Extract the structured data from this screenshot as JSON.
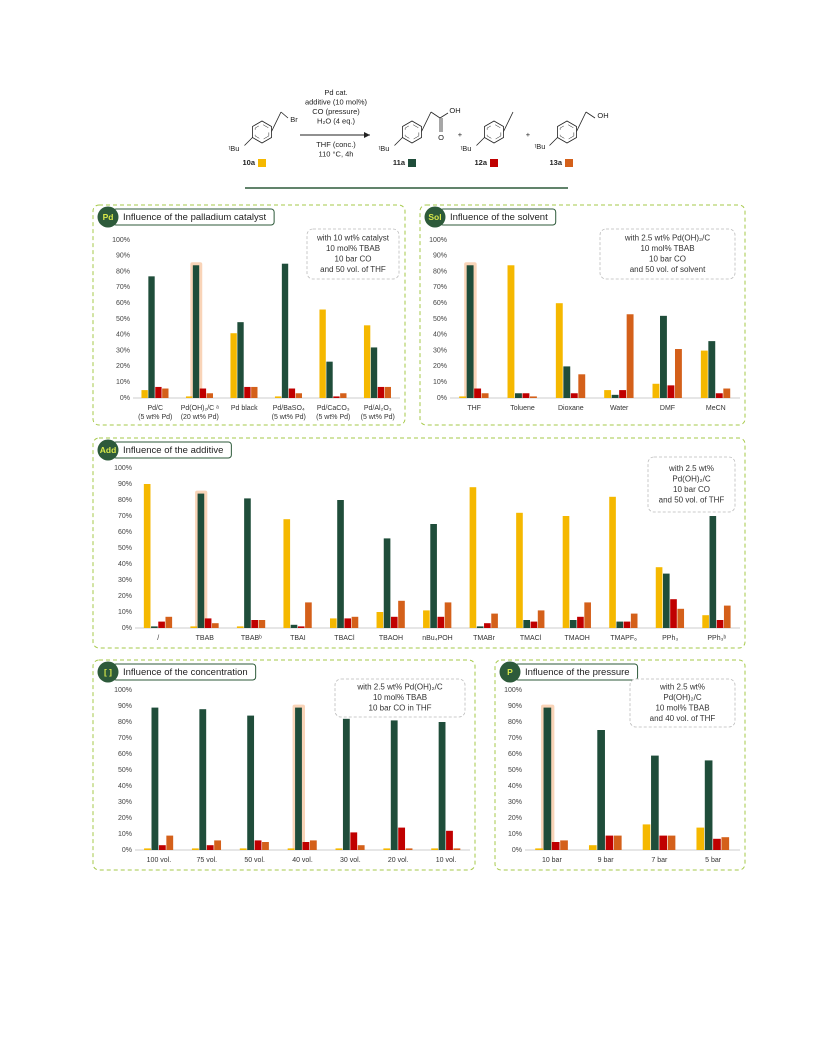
{
  "scheme": {
    "conditions_above": [
      "Pd cat.",
      "additive (10 mol%)",
      "CO (pressure)",
      "H₂O (4 eq.)"
    ],
    "conditions_below": [
      "THF (conc.)",
      "110 °C, 4h"
    ],
    "compounds": [
      {
        "label": "10a",
        "color": "#f5b800",
        "atoms": [
          "ᵗBu",
          "Br"
        ]
      },
      {
        "label": "11a",
        "color": "#1f4d3a",
        "atoms": [
          "ᵗBu",
          "OH",
          "O"
        ]
      },
      {
        "label": "12a",
        "color": "#c00000",
        "atoms": [
          "ᵗBu"
        ]
      },
      {
        "label": "13a",
        "color": "#d4601a",
        "atoms": [
          "ᵗBu",
          "OH"
        ]
      }
    ],
    "plus": "+"
  },
  "chart_data": [
    {
      "type": "bar",
      "badge": "Pd",
      "title": "Influence of the palladium catalyst",
      "note": [
        "with 10 wt% catalyst",
        "10 mol% TBAB",
        "10 bar CO",
        "and 50 vol. of THF"
      ],
      "categories": [
        [
          "Pd/C",
          "(5 wt% Pd)"
        ],
        [
          "Pd(OH)₂/C ᵃ",
          "(20 wt% Pd)"
        ],
        [
          "Pd black"
        ],
        [
          "Pd/BaSO₄",
          "(5 wt% Pd)"
        ],
        [
          "Pd/CaCO₃",
          "(5 wt% Pd)"
        ],
        [
          "Pd/Al₂O₃",
          "(5 wt% Pd)"
        ]
      ],
      "series": [
        {
          "color": "#f5b800",
          "values": [
            5,
            1,
            41,
            1,
            56,
            46
          ]
        },
        {
          "color": "#1f4d3a",
          "values": [
            77,
            84,
            48,
            85,
            23,
            32
          ]
        },
        {
          "color": "#c00000",
          "values": [
            7,
            6,
            7,
            6,
            1,
            7
          ]
        },
        {
          "color": "#d4601a",
          "values": [
            6,
            3,
            7,
            3,
            3,
            7
          ]
        }
      ],
      "highlight": 1,
      "grid": false,
      "ylim": [
        0,
        100
      ],
      "yticks": [
        {
          "value": 0,
          "label": "0%"
        },
        {
          "value": 10,
          "label": "10%"
        },
        {
          "value": 20,
          "label": "20%"
        },
        {
          "value": 30,
          "label": "30%"
        },
        {
          "value": 40,
          "label": "40%"
        },
        {
          "value": 50,
          "label": "50%"
        },
        {
          "value": 60,
          "label": "60%"
        },
        {
          "value": 70,
          "label": "70%"
        },
        {
          "value": 80,
          "label": "80%"
        },
        {
          "value": 90,
          "label": "90%"
        },
        {
          "value": 100,
          "label": "100%"
        }
      ]
    },
    {
      "type": "bar",
      "badge": "Sol",
      "title": "Influence of the solvent",
      "note": [
        "with 2.5 wt% Pd(OH)₂/C",
        "10 mol% TBAB",
        "10 bar CO",
        "and 50 vol. of solvent"
      ],
      "categories": [
        [
          "THF"
        ],
        [
          "Toluene"
        ],
        [
          "Dioxane"
        ],
        [
          "Water"
        ],
        [
          "DMF"
        ],
        [
          "MeCN"
        ]
      ],
      "series": [
        {
          "color": "#f5b800",
          "values": [
            1,
            84,
            60,
            5,
            9,
            30
          ]
        },
        {
          "color": "#1f4d3a",
          "values": [
            84,
            3,
            20,
            2,
            52,
            36
          ]
        },
        {
          "color": "#c00000",
          "values": [
            6,
            3,
            3,
            5,
            8,
            3
          ]
        },
        {
          "color": "#d4601a",
          "values": [
            3,
            1,
            15,
            53,
            31,
            6
          ]
        }
      ],
      "highlight": 0,
      "grid": false,
      "ylim": [
        0,
        100
      ],
      "yticks": [
        {
          "value": 0,
          "label": "0%"
        },
        {
          "value": 10,
          "label": "10%"
        },
        {
          "value": 20,
          "label": "20%"
        },
        {
          "value": 30,
          "label": "30%"
        },
        {
          "value": 40,
          "label": "40%"
        },
        {
          "value": 50,
          "label": "50%"
        },
        {
          "value": 60,
          "label": "60%"
        },
        {
          "value": 70,
          "label": "70%"
        },
        {
          "value": 80,
          "label": "80%"
        },
        {
          "value": 90,
          "label": "90%"
        },
        {
          "value": 100,
          "label": "100%"
        }
      ]
    },
    {
      "type": "bar",
      "badge": "Add",
      "title": "Influence of the additive",
      "note": [
        "with 2.5 wt%",
        "Pd(OH)₂/C",
        "10 bar CO",
        "and 50 vol. of THF"
      ],
      "categories": [
        [
          "/"
        ],
        [
          "TBAB"
        ],
        [
          "TBABᵇ"
        ],
        [
          "TBAI"
        ],
        [
          "TBACl"
        ],
        [
          "TBAOH"
        ],
        [
          "nBu₄POH"
        ],
        [
          "TMABr"
        ],
        [
          "TMACl"
        ],
        [
          "TMAOH"
        ],
        [
          "TMAPF₆"
        ],
        [
          "PPh₃"
        ],
        [
          "PPh₃ᵇ"
        ]
      ],
      "series": [
        {
          "color": "#f5b800",
          "values": [
            90,
            1,
            1,
            68,
            6,
            10,
            11,
            88,
            72,
            70,
            82,
            38,
            8
          ]
        },
        {
          "color": "#1f4d3a",
          "values": [
            1,
            84,
            81,
            2,
            80,
            56,
            65,
            1,
            5,
            5,
            4,
            34,
            70
          ]
        },
        {
          "color": "#c00000",
          "values": [
            4,
            6,
            5,
            1,
            6,
            7,
            7,
            3,
            4,
            7,
            4,
            18,
            5
          ]
        },
        {
          "color": "#d4601a",
          "values": [
            7,
            3,
            5,
            16,
            7,
            17,
            16,
            9,
            11,
            16,
            9,
            12,
            14
          ]
        }
      ],
      "highlight": 1,
      "grid": false,
      "ylim": [
        0,
        100
      ],
      "yticks": [
        {
          "value": 0,
          "label": "0%"
        },
        {
          "value": 10,
          "label": "10%"
        },
        {
          "value": 20,
          "label": "20%"
        },
        {
          "value": 30,
          "label": "30%"
        },
        {
          "value": 40,
          "label": "40%"
        },
        {
          "value": 50,
          "label": "50%"
        },
        {
          "value": 60,
          "label": "60%"
        },
        {
          "value": 70,
          "label": "70%"
        },
        {
          "value": 80,
          "label": "80%"
        },
        {
          "value": 90,
          "label": "90%"
        },
        {
          "value": 100,
          "label": "100%"
        }
      ]
    },
    {
      "type": "bar",
      "badge": "[ ]",
      "title": "Influence of the concentration",
      "note": [
        "with 2.5 wt% Pd(OH)₂/C",
        "10 mol% TBAB",
        "10 bar CO in THF"
      ],
      "categories": [
        [
          "100 vol."
        ],
        [
          "75 vol."
        ],
        [
          "50 vol."
        ],
        [
          "40 vol."
        ],
        [
          "30 vol."
        ],
        [
          "20 vol."
        ],
        [
          "10 vol."
        ]
      ],
      "series": [
        {
          "color": "#f5b800",
          "values": [
            1,
            1,
            1,
            1,
            1,
            1,
            1
          ]
        },
        {
          "color": "#1f4d3a",
          "values": [
            89,
            88,
            84,
            89,
            82,
            81,
            80
          ]
        },
        {
          "color": "#c00000",
          "values": [
            3,
            3,
            6,
            5,
            11,
            14,
            12
          ]
        },
        {
          "color": "#d4601a",
          "values": [
            9,
            6,
            5,
            6,
            3,
            1,
            1
          ]
        }
      ],
      "highlight": 3,
      "grid": false,
      "ylim": [
        0,
        100
      ],
      "yticks": [
        {
          "value": 0,
          "label": "0%"
        },
        {
          "value": 10,
          "label": "10%"
        },
        {
          "value": 20,
          "label": "20%"
        },
        {
          "value": 30,
          "label": "30%"
        },
        {
          "value": 40,
          "label": "40%"
        },
        {
          "value": 50,
          "label": "50%"
        },
        {
          "value": 60,
          "label": "60%"
        },
        {
          "value": 70,
          "label": "70%"
        },
        {
          "value": 80,
          "label": "80%"
        },
        {
          "value": 90,
          "label": "90%"
        },
        {
          "value": 100,
          "label": "100%"
        }
      ]
    },
    {
      "type": "bar",
      "badge": "P",
      "title": "Influence of the pressure",
      "note": [
        "with 2.5 wt%",
        "Pd(OH)₂/C",
        "10 mol% TBAB",
        "and 40 vol. of THF"
      ],
      "categories": [
        [
          "10 bar"
        ],
        [
          "9 bar"
        ],
        [
          "7 bar"
        ],
        [
          "5 bar"
        ]
      ],
      "series": [
        {
          "color": "#f5b800",
          "values": [
            1,
            3,
            16,
            14
          ]
        },
        {
          "color": "#1f4d3a",
          "values": [
            89,
            75,
            59,
            56
          ]
        },
        {
          "color": "#c00000",
          "values": [
            5,
            9,
            9,
            7
          ]
        },
        {
          "color": "#d4601a",
          "values": [
            6,
            9,
            9,
            8
          ]
        }
      ],
      "highlight": 0,
      "grid": false,
      "ylim": [
        0,
        100
      ],
      "yticks": [
        {
          "value": 0,
          "label": "0%"
        },
        {
          "value": 10,
          "label": "10%"
        },
        {
          "value": 20,
          "label": "20%"
        },
        {
          "value": 30,
          "label": "30%"
        },
        {
          "value": 40,
          "label": "40%"
        },
        {
          "value": 50,
          "label": "50%"
        },
        {
          "value": 60,
          "label": "60%"
        },
        {
          "value": 70,
          "label": "70%"
        },
        {
          "value": 80,
          "label": "80%"
        },
        {
          "value": 90,
          "label": "90%"
        },
        {
          "value": 100,
          "label": "100%"
        }
      ]
    }
  ]
}
